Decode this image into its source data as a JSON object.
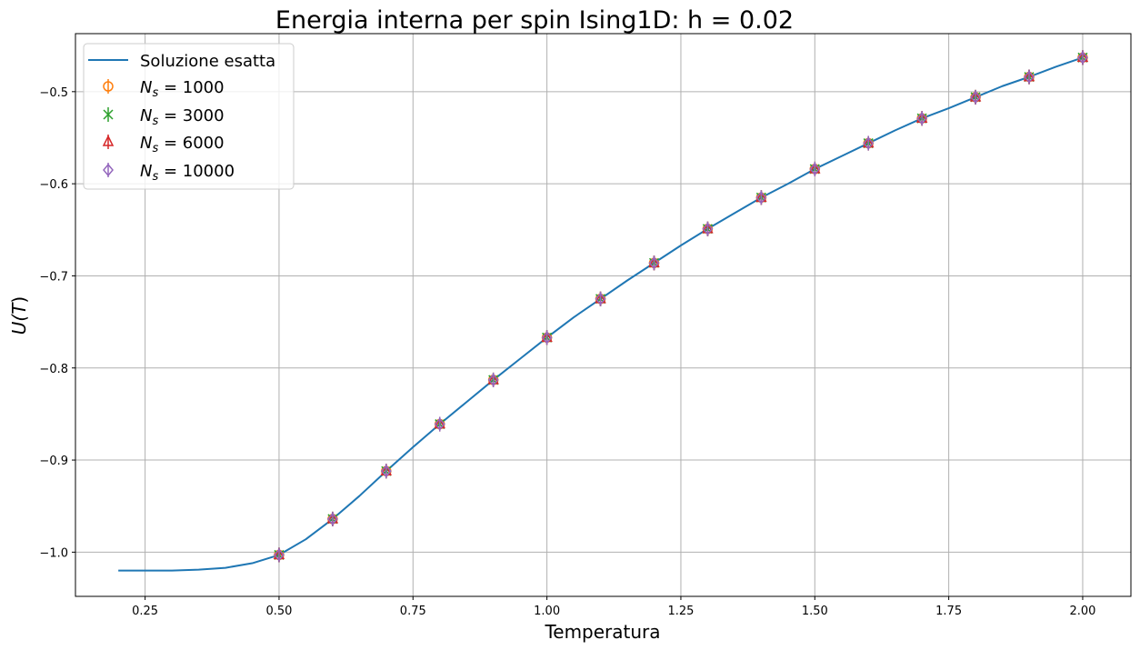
{
  "chart_data": {
    "type": "line",
    "title": "Energia interna per spin Ising1D: h = 0.02",
    "xlabel": "Temperatura",
    "ylabel": "U(T)",
    "xlim": [
      0.12,
      2.09
    ],
    "ylim": [
      -1.048,
      -0.437
    ],
    "xticks": [
      0.25,
      0.5,
      0.75,
      1.0,
      1.25,
      1.5,
      1.75,
      2.0
    ],
    "xtick_labels": [
      "0.25",
      "0.50",
      "0.75",
      "1.00",
      "1.25",
      "1.50",
      "1.75",
      "2.00"
    ],
    "yticks": [
      -1.0,
      -0.9,
      -0.8,
      -0.7,
      -0.6,
      -0.5
    ],
    "ytick_labels": [
      "−1.0",
      "−0.9",
      "−0.8",
      "−0.7",
      "−0.6",
      "−0.5"
    ],
    "grid": true,
    "legend_position": "upper-left",
    "line_series": {
      "name": "Soluzione esatta",
      "color": "#1f77b4",
      "x": [
        0.2,
        0.25,
        0.3,
        0.35,
        0.4,
        0.45,
        0.5,
        0.55,
        0.6,
        0.65,
        0.7,
        0.75,
        0.8,
        0.85,
        0.9,
        0.95,
        1.0,
        1.05,
        1.1,
        1.15,
        1.2,
        1.25,
        1.3,
        1.35,
        1.4,
        1.45,
        1.5,
        1.55,
        1.6,
        1.65,
        1.7,
        1.75,
        1.8,
        1.85,
        1.9,
        1.95,
        2.0
      ],
      "y": [
        -1.02,
        -1.02,
        -1.02,
        -1.019,
        -1.017,
        -1.012,
        -1.003,
        -0.986,
        -0.964,
        -0.939,
        -0.912,
        -0.886,
        -0.861,
        -0.837,
        -0.813,
        -0.79,
        -0.767,
        -0.745,
        -0.725,
        -0.705,
        -0.686,
        -0.667,
        -0.649,
        -0.632,
        -0.615,
        -0.6,
        -0.584,
        -0.57,
        -0.556,
        -0.542,
        -0.529,
        -0.518,
        -0.506,
        -0.494,
        -0.484,
        -0.473,
        -0.463
      ]
    },
    "marker_series": [
      {
        "name_prefix": "N",
        "name_sub": "s",
        "name_value": " = 1000",
        "marker": "circle",
        "color": "#ff7f0e"
      },
      {
        "name_prefix": "N",
        "name_sub": "s",
        "name_value": " = 3000",
        "marker": "x",
        "color": "#2ca02c"
      },
      {
        "name_prefix": "N",
        "name_sub": "s",
        "name_value": " = 6000",
        "marker": "triangle",
        "color": "#d62728"
      },
      {
        "name_prefix": "N",
        "name_sub": "s",
        "name_value": " = 10000",
        "marker": "diamond",
        "color": "#9467bd"
      }
    ],
    "marker_x": [
      0.5,
      0.6,
      0.7,
      0.8,
      0.9,
      1.0,
      1.1,
      1.2,
      1.3,
      1.4,
      1.5,
      1.6,
      1.7,
      1.8,
      1.9,
      2.0
    ],
    "marker_y": [
      -1.003,
      -0.964,
      -0.912,
      -0.861,
      -0.813,
      -0.767,
      -0.725,
      -0.686,
      -0.649,
      -0.615,
      -0.584,
      -0.556,
      -0.529,
      -0.506,
      -0.484,
      -0.463
    ]
  }
}
